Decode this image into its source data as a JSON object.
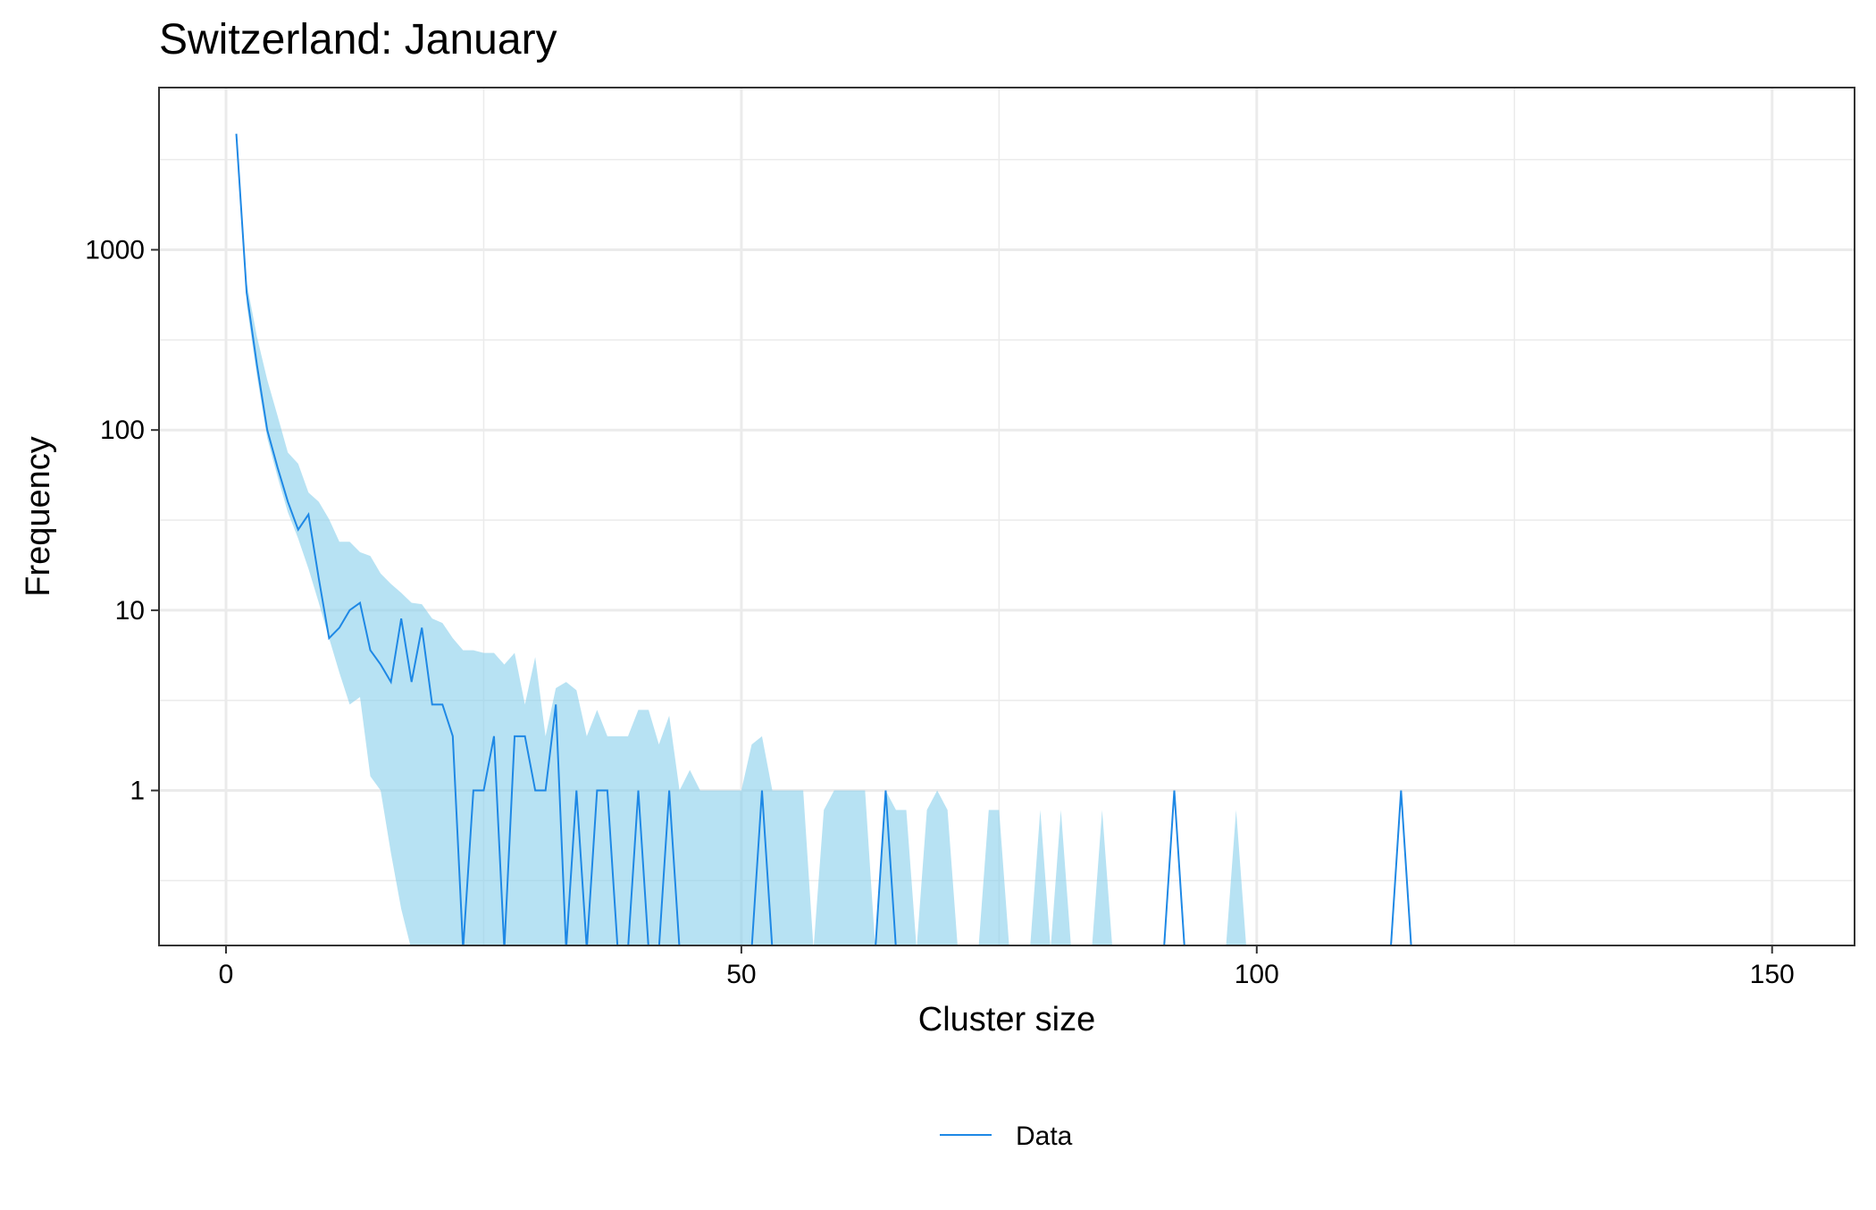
{
  "chart_data": {
    "type": "line",
    "title": "Switzerland: January",
    "xlabel": "Cluster size",
    "ylabel": "Frequency",
    "xlim": [
      -6.5,
      158
    ],
    "ylim_log10": [
      -0.86,
      3.9
    ],
    "y_scale": "log10",
    "x_ticks": [
      0,
      50,
      100,
      150
    ],
    "x_tick_labels": [
      "0",
      "50",
      "100",
      "150"
    ],
    "y_ticks": [
      1,
      10,
      100,
      1000
    ],
    "y_tick_labels": [
      "1",
      "10",
      "100",
      "1000"
    ],
    "grid": true,
    "legend_position": "bottom",
    "legend": [
      {
        "label": "Data",
        "color": "#1E88E5"
      }
    ],
    "colors": {
      "line": "#1E88E5",
      "band": "#87CEEB",
      "grid": "#EBEBEB",
      "border": "#333333"
    },
    "series": [
      {
        "name": "Data",
        "x": [
          1,
          2,
          3,
          4,
          5,
          6,
          7,
          8,
          9,
          10,
          11,
          12,
          13,
          14,
          15,
          16,
          17,
          18,
          19,
          20,
          21,
          22,
          23,
          24,
          25,
          26,
          27,
          28,
          29,
          30,
          31,
          32,
          33,
          34,
          35,
          36,
          37,
          38,
          39,
          40,
          41,
          42,
          43,
          44,
          45,
          46,
          47,
          48,
          49,
          50,
          51,
          52,
          53,
          54,
          55,
          56,
          57,
          58,
          59,
          60,
          61,
          62,
          63,
          64,
          65,
          66,
          67,
          68,
          69,
          70,
          71,
          72,
          73,
          74,
          75,
          76,
          77,
          78,
          79,
          80,
          81,
          82,
          83,
          84,
          85,
          86,
          87,
          88,
          89,
          90,
          91,
          92,
          93,
          94,
          95,
          96,
          97,
          98,
          99,
          100,
          101,
          102,
          103,
          104,
          105,
          106,
          107,
          108,
          109,
          110,
          111,
          112,
          113,
          114,
          115,
          116
        ],
        "y": [
          4400,
          580,
          230,
          100,
          62,
          40,
          28,
          34,
          15,
          7,
          8,
          10,
          11,
          6,
          5,
          4,
          9,
          4,
          8,
          3,
          3,
          2,
          0,
          1,
          1,
          2,
          0,
          2,
          2,
          1,
          1,
          3,
          0,
          1,
          0,
          1,
          1,
          0,
          0,
          1,
          0,
          0,
          1,
          0,
          0,
          0,
          0,
          0,
          0,
          0,
          0,
          1,
          0,
          0,
          0,
          0,
          0,
          0,
          0,
          0,
          0,
          0,
          0,
          1,
          0,
          0,
          0,
          0,
          0,
          0,
          0,
          0,
          0,
          0,
          0,
          0,
          0,
          0,
          0,
          0,
          0,
          0,
          0,
          0,
          0,
          0,
          0,
          0,
          0,
          0,
          0,
          1,
          0,
          0,
          0,
          0,
          0,
          0,
          0,
          0,
          0,
          0,
          0,
          0,
          0,
          0,
          0,
          0,
          0,
          0,
          0,
          0,
          0,
          1,
          0,
          0
        ]
      }
    ],
    "band": {
      "x": [
        2,
        3,
        4,
        5,
        6,
        7,
        8,
        9,
        10,
        11,
        12,
        13,
        14,
        15,
        16,
        17,
        18,
        19,
        20,
        21,
        22,
        23,
        24,
        25,
        26,
        27,
        28,
        29,
        30,
        31,
        32,
        33,
        34,
        35,
        36,
        37,
        38,
        39,
        40,
        41,
        42,
        43,
        44,
        45,
        46,
        47,
        48,
        49,
        50,
        51,
        52,
        53,
        54,
        55,
        56,
        57,
        58,
        59,
        60,
        61,
        62,
        63,
        64,
        65,
        66,
        67,
        68,
        69,
        70,
        71,
        72,
        73,
        74,
        75,
        76,
        77,
        78,
        79,
        80,
        81,
        82,
        83,
        84,
        85,
        86,
        87,
        88,
        89,
        90,
        91,
        92,
        93,
        94,
        95,
        96,
        97,
        98,
        99
      ],
      "upper": [
        660,
        330,
        190,
        120,
        75,
        65,
        45,
        40,
        32,
        24,
        24,
        21,
        20,
        16,
        14,
        12.5,
        11,
        10.8,
        9,
        8.5,
        7,
        6,
        6,
        5.8,
        5.8,
        5,
        5.8,
        3,
        5.5,
        2,
        3.7,
        4,
        3.6,
        2,
        2.8,
        2,
        2,
        2,
        2.8,
        2.8,
        1.8,
        2.6,
        1,
        1.3,
        1,
        1,
        1,
        1,
        1,
        1.8,
        2,
        1,
        1,
        1,
        1,
        0,
        0.78,
        1,
        1,
        1,
        1,
        0,
        1,
        0.78,
        0.78,
        0,
        0.78,
        1,
        0.78,
        0,
        0,
        0,
        0.78,
        0.78,
        0,
        0,
        0,
        0.78,
        0,
        0.78,
        0,
        0,
        0,
        0.78,
        0,
        0,
        0,
        0,
        0,
        0,
        0,
        0,
        0,
        0,
        0,
        0,
        0.78,
        0
      ],
      "lower": [
        500,
        200,
        90,
        55,
        35,
        25,
        17,
        11,
        7,
        4.5,
        3,
        3.3,
        1.2,
        1,
        0.45,
        0.22,
        0.13,
        0,
        0,
        0,
        0,
        0,
        0,
        0,
        0,
        0,
        0,
        0,
        0,
        0,
        0,
        0,
        0,
        0,
        0,
        0,
        0,
        0,
        0,
        0,
        0,
        0,
        0,
        0,
        0,
        0,
        0,
        0,
        0,
        0,
        0,
        0,
        0,
        0,
        0,
        0,
        0,
        0,
        0,
        0,
        0,
        0,
        0,
        0,
        0,
        0,
        0,
        0,
        0,
        0,
        0,
        0,
        0,
        0,
        0,
        0,
        0,
        0,
        0,
        0,
        0,
        0,
        0,
        0,
        0,
        0,
        0,
        0,
        0,
        0,
        0,
        0,
        0,
        0,
        0,
        0,
        0,
        0
      ]
    }
  }
}
